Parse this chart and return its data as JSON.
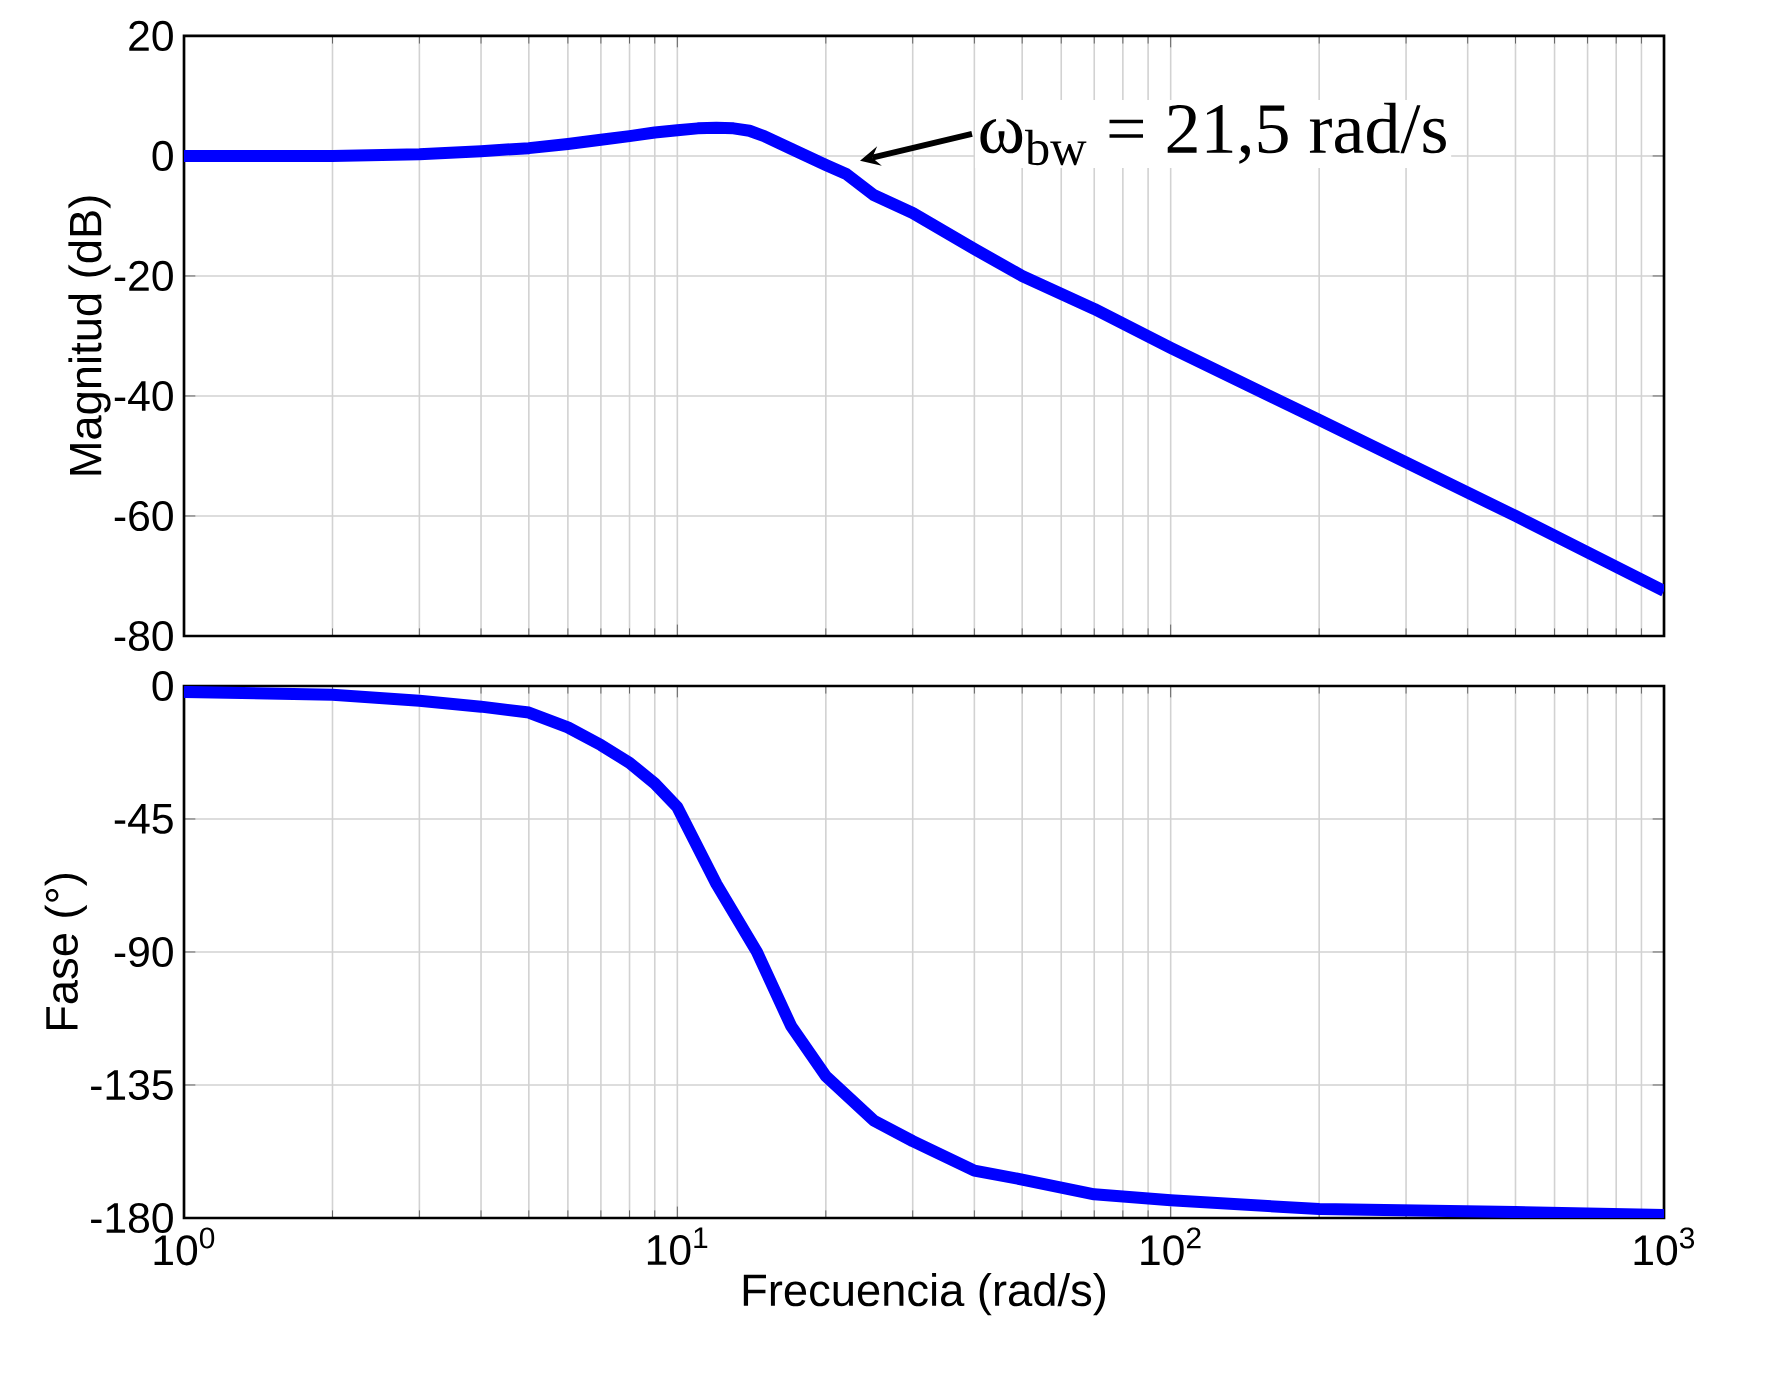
{
  "chart_data": [
    {
      "type": "line",
      "ylabel": "Magnitud (dB)",
      "log": "x",
      "grid": true,
      "tick_labels": "y",
      "xlim": [
        1,
        1000
      ],
      "ylim": [
        -80,
        20
      ],
      "yticks": [
        -80,
        -60,
        -40,
        -20,
        0,
        20
      ],
      "xticks": [
        {
          "value": 1,
          "label": null
        },
        {
          "value": 10,
          "label": null
        },
        {
          "value": 100,
          "label": null
        },
        {
          "value": 1000,
          "label": null
        }
      ],
      "annotations": [
        {
          "text": "ω$_{bw}$ = 21,5 rad/s",
          "x": 21.5,
          "y": -3
        }
      ],
      "series": [
        {
          "color": "#0000ff",
          "x": [
            1,
            2,
            3,
            4,
            5,
            6,
            7,
            8,
            9,
            10,
            11,
            12,
            13,
            14,
            15,
            17,
            20,
            22,
            25,
            30,
            40,
            50,
            70,
            100,
            200,
            500,
            1000
          ],
          "values": [
            0,
            0,
            0.3,
            0.8,
            1.3,
            2,
            2.7,
            3.3,
            3.9,
            4.3,
            4.6,
            4.7,
            4.6,
            4.2,
            3.3,
            1.2,
            -1.5,
            -3,
            -6.5,
            -9.5,
            -15.5,
            -20,
            -25.5,
            -32,
            -44,
            -60,
            -72.5
          ]
        }
      ]
    },
    {
      "type": "line",
      "ylabel": "Fase (°)",
      "xlabel": "Frecuencia (rad/s)",
      "log": "x",
      "grid": true,
      "xlim": [
        1,
        1000
      ],
      "ylim": [
        -180,
        0
      ],
      "yticks": [
        -180,
        -135,
        -90,
        -45,
        0
      ],
      "xticks": [
        {
          "value": 1,
          "label": "10$^{0}$"
        },
        {
          "value": 10,
          "label": "10$^{1}$"
        },
        {
          "value": 100,
          "label": "10$^{2}$"
        },
        {
          "value": 1000,
          "label": "10$^{3}$"
        }
      ],
      "series": [
        {
          "color": "#0000ff",
          "x": [
            1,
            2,
            3,
            4,
            5,
            6,
            7,
            8,
            9,
            10,
            12,
            14.5,
            17,
            20,
            25,
            30,
            40,
            50,
            70,
            100,
            200,
            500,
            1000
          ],
          "values": [
            -2,
            -3,
            -5,
            -7,
            -9,
            -14,
            -20,
            -26,
            -33,
            -41,
            -67,
            -90,
            -115,
            -132,
            -147,
            -154,
            -164,
            -167,
            -172,
            -174,
            -177,
            -178,
            -179
          ]
        }
      ]
    }
  ]
}
